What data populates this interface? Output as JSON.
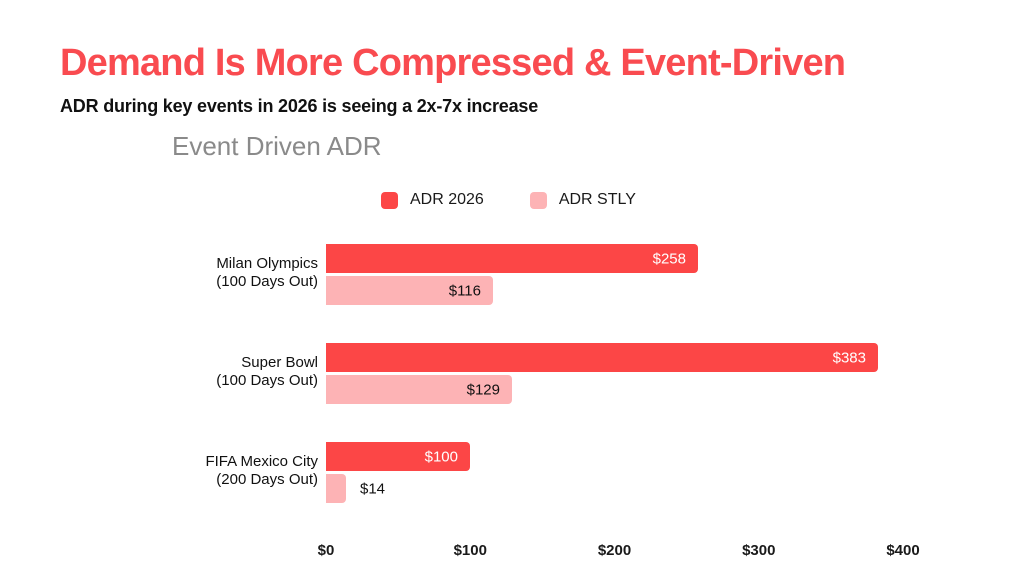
{
  "header": {
    "title": "Demand Is More Compressed & Event-Driven",
    "subtitle": "ADR during key events in 2026 is seeing a 2x-7x increase"
  },
  "chart_data": {
    "type": "bar",
    "orientation": "horizontal",
    "title": "Event Driven ADR",
    "categories": [
      "Milan Olympics (100 Days Out)",
      "Super Bowl (100 Days Out)",
      "FIFA Mexico City (200 Days Out)"
    ],
    "category_lines": [
      [
        "Milan Olympics",
        "(100 Days Out)"
      ],
      [
        "Super Bowl",
        "(100 Days Out)"
      ],
      [
        "FIFA Mexico City",
        "(200 Days Out)"
      ]
    ],
    "series": [
      {
        "name": "ADR 2026",
        "color": "#FC4646",
        "values": [
          258,
          383,
          100
        ],
        "labels": [
          "$258",
          "$383",
          "$100"
        ]
      },
      {
        "name": "ADR STLY",
        "color": "#FDB3B5",
        "values": [
          116,
          129,
          14
        ],
        "labels": [
          "$116",
          "$129",
          "$14"
        ]
      }
    ],
    "xlabel": "",
    "ylabel": "",
    "xlim": [
      0,
      400
    ],
    "x_ticks": [
      "$0",
      "$100",
      "$200",
      "$300",
      "$400"
    ],
    "x_tick_values": [
      0,
      100,
      200,
      300,
      400
    ],
    "grid": false,
    "legend_position": "top"
  },
  "colors": {
    "title_red": "#F94B50",
    "bar_red": "#FC4646",
    "bar_pink": "#FDB3B5",
    "chart_title_gray": "#8A8A8A",
    "text_dark": "#111111",
    "background": "#FFFFFF",
    "value_label_on_red": "#FFFFFF"
  }
}
